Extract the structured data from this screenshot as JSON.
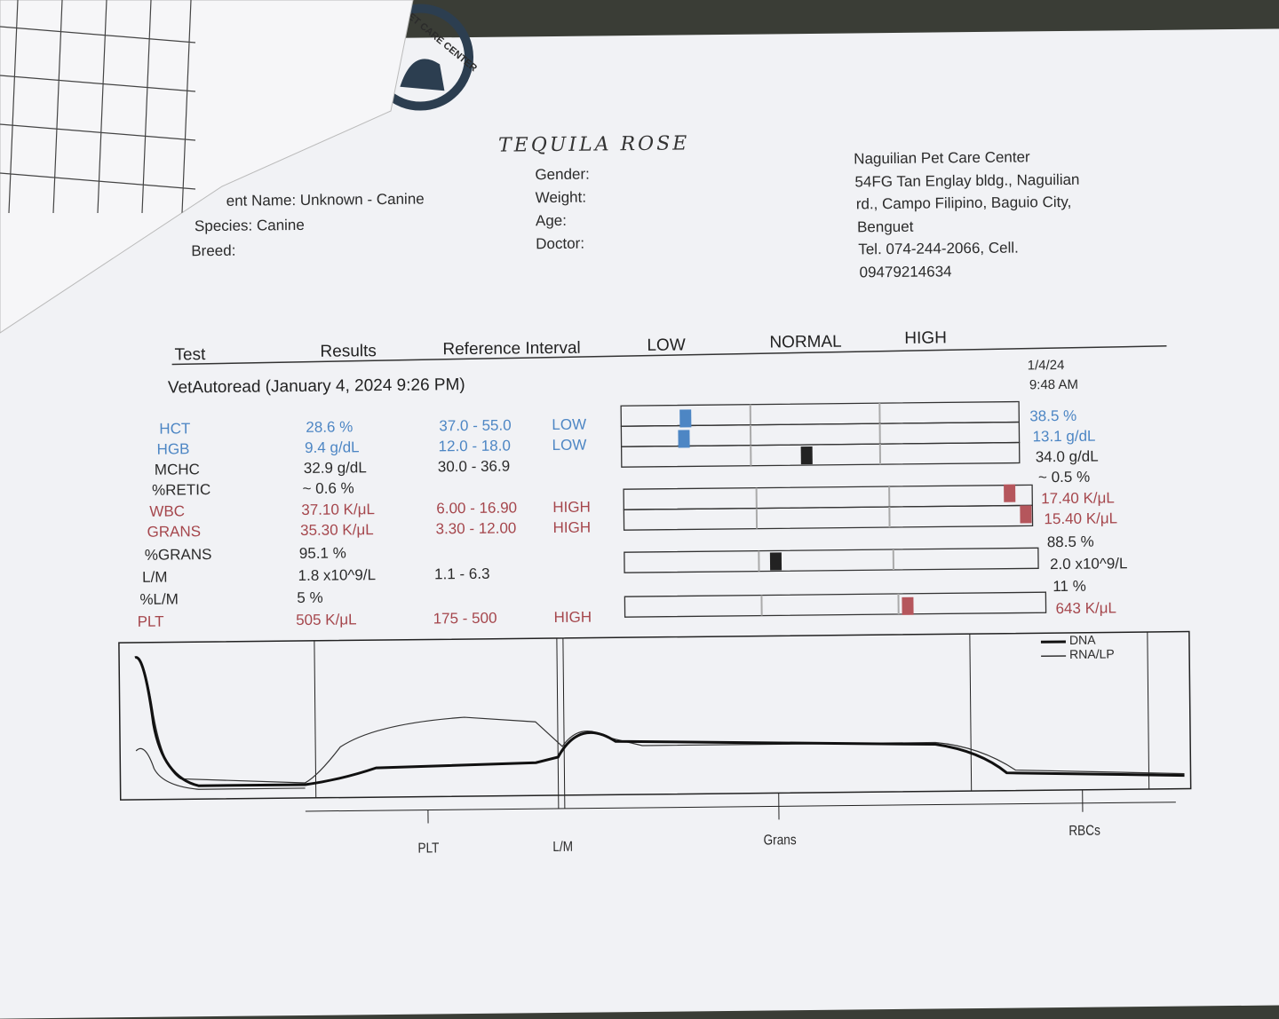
{
  "logo": {
    "text": "ET CARE CENTER"
  },
  "patient": {
    "handwritten_name": "TEQUILA ROSE",
    "name": "ent Name: Unknown - Canine",
    "species": "Species: Canine",
    "breed": "Breed:",
    "gender": "Gender:",
    "weight": "Weight:",
    "age": "Age:",
    "doctor": "Doctor:"
  },
  "clinic": {
    "lines": [
      "Naguilian Pet Care Center",
      "54FG Tan Englay bldg., Naguilian",
      "rd., Campo Filipino, Baguio City,",
      "Benguet",
      "Tel. 074-244-2066, Cell.",
      "09479214634"
    ]
  },
  "table": {
    "headers": [
      "Test",
      "Results",
      "Reference Interval",
      "LOW",
      "NORMAL",
      "HIGH"
    ],
    "run_title": "VetAutoread (January 4, 2024 9:26 PM)",
    "previous_date": "1/4/24",
    "previous_time": "9:48 AM",
    "rows": [
      {
        "test": "HCT",
        "result": "28.6 %",
        "reference": "37.0 - 55.0",
        "flag": "LOW",
        "previous": "38.5 %"
      },
      {
        "test": "HGB",
        "result": "9.4 g/dL",
        "reference": "12.0 - 18.0",
        "flag": "LOW",
        "previous": "13.1 g/dL"
      },
      {
        "test": "MCHC",
        "result": "32.9 g/dL",
        "reference": "30.0 - 36.9",
        "previous": "34.0 g/dL"
      },
      {
        "test": "%RETIC",
        "result": "~ 0.6 %",
        "previous": "~ 0.5 %"
      },
      {
        "test": "WBC",
        "result": "37.10 K/μL",
        "reference": "6.00 - 16.90",
        "flag": "HIGH",
        "previous": "17.40 K/μL"
      },
      {
        "test": "GRANS",
        "result": "35.30 K/μL",
        "reference": "3.30 - 12.00",
        "flag": "HIGH",
        "previous": "15.40 K/μL"
      },
      {
        "test": "%GRANS",
        "result": "95.1 %",
        "previous": "88.5 %"
      },
      {
        "test": "L/M",
        "result": "1.8 x10^9/L",
        "reference": "1.1 - 6.3",
        "previous": "2.0 x10^9/L"
      },
      {
        "test": "%L/M",
        "result": "5 %",
        "previous": "11 %"
      },
      {
        "test": "PLT",
        "result": "505 K/μL",
        "reference": "175 - 500",
        "flag": "HIGH",
        "previous": "643 K/μL"
      }
    ]
  },
  "histogram": {
    "legend": [
      "DNA",
      "RNA/LP"
    ],
    "regions": [
      "PLT",
      "L/M",
      "Grans",
      "RBCs"
    ]
  }
}
